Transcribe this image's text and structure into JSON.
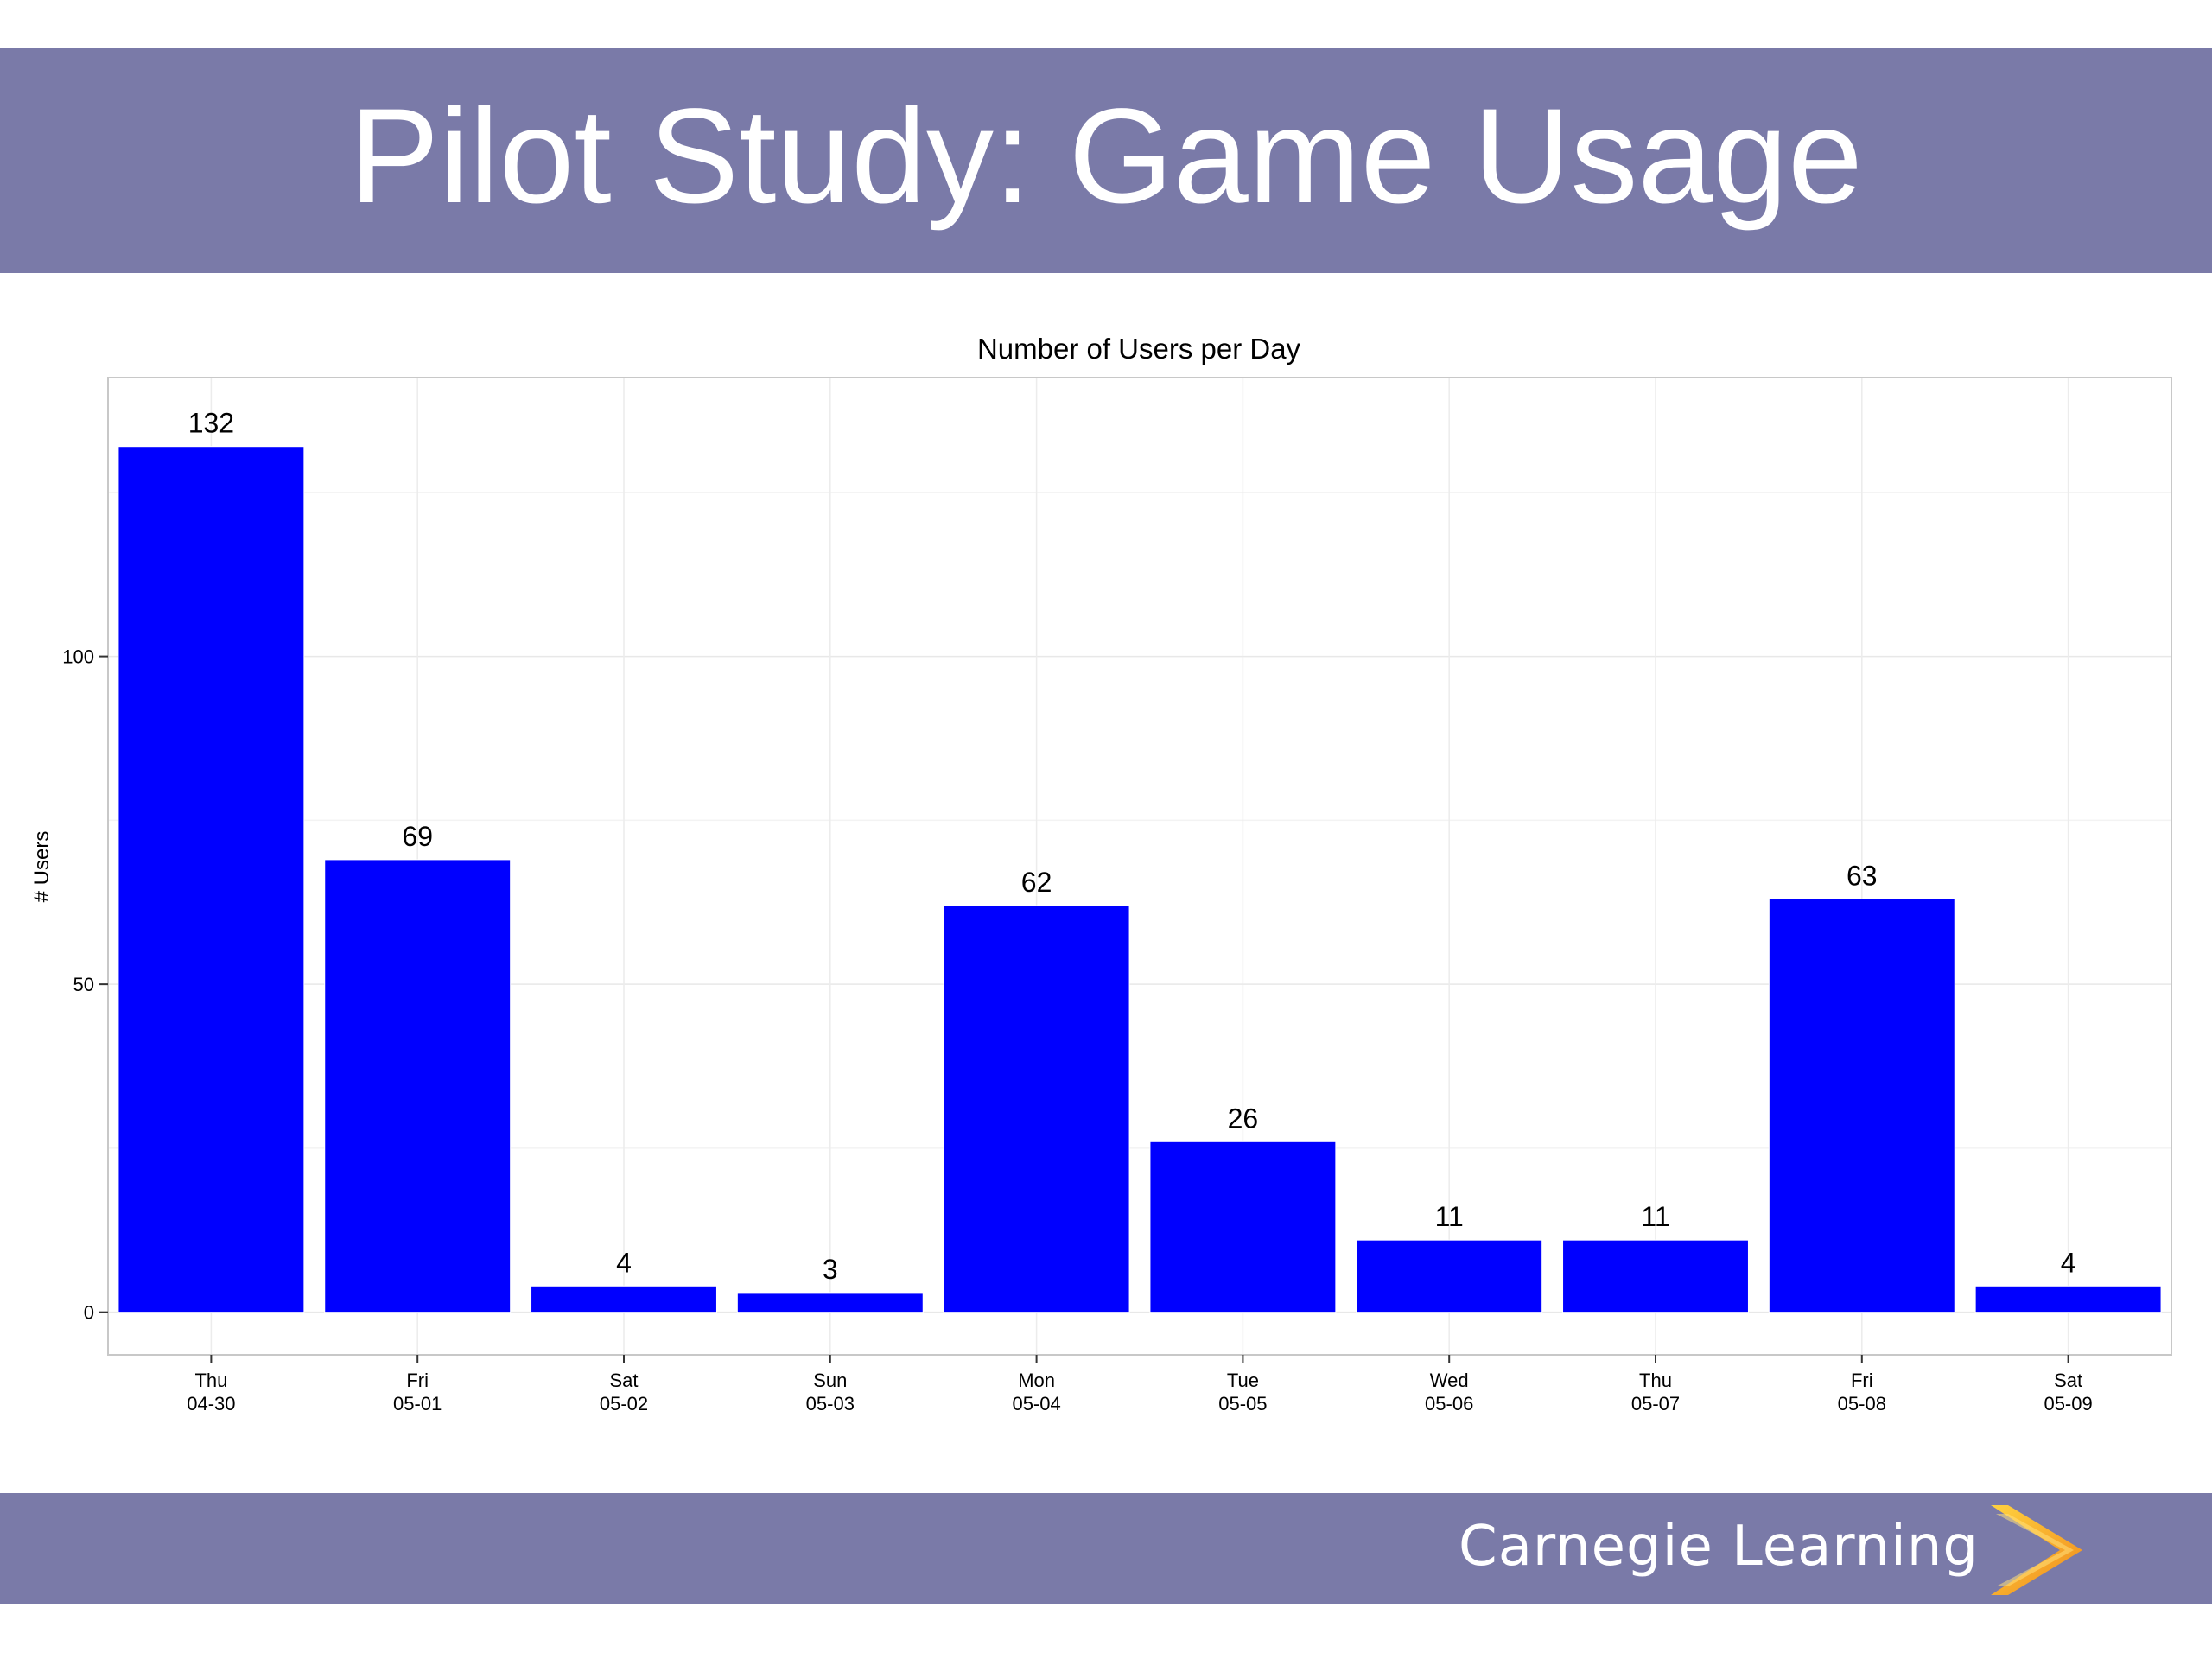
{
  "slide": {
    "title": "Pilot Study: Game Usage",
    "brand_name": "Carnegie Learning",
    "colors": {
      "bar_background": "#7a7aa8",
      "bar_fill": "#0000ff",
      "brand_mark": "#f5a623"
    }
  },
  "chart_data": {
    "type": "bar",
    "title": "Number of Users per Day",
    "xlabel": "",
    "ylabel": "# Users",
    "categories": [
      {
        "day": "Thu",
        "date": "04-30"
      },
      {
        "day": "Fri",
        "date": "05-01"
      },
      {
        "day": "Sat",
        "date": "05-02"
      },
      {
        "day": "Sun",
        "date": "05-03"
      },
      {
        "day": "Mon",
        "date": "05-04"
      },
      {
        "day": "Tue",
        "date": "05-05"
      },
      {
        "day": "Wed",
        "date": "05-06"
      },
      {
        "day": "Thu",
        "date": "05-07"
      },
      {
        "day": "Fri",
        "date": "05-08"
      },
      {
        "day": "Sat",
        "date": "05-09"
      }
    ],
    "values": [
      132,
      69,
      4,
      3,
      62,
      26,
      11,
      11,
      63,
      4
    ],
    "yticks": [
      0,
      50,
      100
    ],
    "ylim": [
      -6.5,
      142.5
    ],
    "grid": true,
    "legend": "none"
  }
}
